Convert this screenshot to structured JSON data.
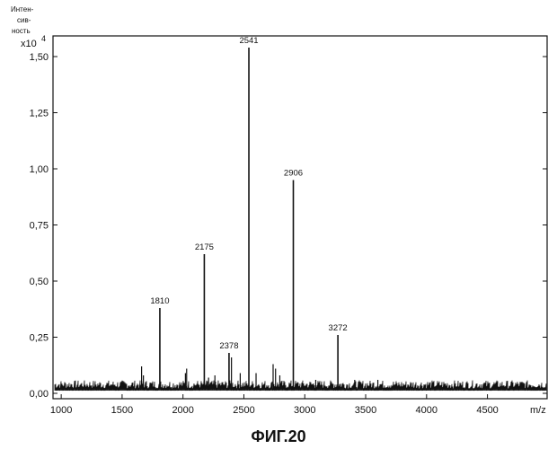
{
  "figure_caption": "ФИГ.20",
  "chart_data": {
    "type": "line",
    "title": "",
    "ylabel_lines": [
      "Интен-",
      "сив-",
      "ность"
    ],
    "y_multiplier_base": "x10",
    "y_multiplier_exp": "4",
    "xlabel": "m/z",
    "xlim": [
      940,
      4990
    ],
    "ylim": [
      0,
      1.6
    ],
    "x_ticks": [
      1000,
      1500,
      2000,
      2500,
      3000,
      3500,
      4000,
      4500
    ],
    "x_tick_labels": [
      "1000",
      "1500",
      "2000",
      "2500",
      "3000",
      "3500",
      "4000",
      "4500"
    ],
    "y_ticks": [
      0,
      0.25,
      0.5,
      0.75,
      1.0,
      1.25,
      1.5
    ],
    "y_tick_labels": [
      "0,00",
      "0,25",
      "0,50",
      "0,75",
      "1,00",
      "1,25",
      "1,50"
    ],
    "grid": false,
    "baseline_level": 0.04,
    "labeled_peaks": [
      {
        "x": 1810,
        "y": 0.38,
        "label": "1810"
      },
      {
        "x": 2175,
        "y": 0.62,
        "label": "2175"
      },
      {
        "x": 2378,
        "y": 0.18,
        "label": "2378"
      },
      {
        "x": 2541,
        "y": 1.54,
        "label": "2541"
      },
      {
        "x": 2906,
        "y": 0.95,
        "label": "2906"
      },
      {
        "x": 3272,
        "y": 0.26,
        "label": "3272"
      }
    ],
    "minor_peaks": [
      {
        "x": 1660,
        "y": 0.12
      },
      {
        "x": 1675,
        "y": 0.08
      },
      {
        "x": 2020,
        "y": 0.09
      },
      {
        "x": 2030,
        "y": 0.11
      },
      {
        "x": 2210,
        "y": 0.07
      },
      {
        "x": 2262,
        "y": 0.08
      },
      {
        "x": 2398,
        "y": 0.16
      },
      {
        "x": 2470,
        "y": 0.09
      },
      {
        "x": 2600,
        "y": 0.09
      },
      {
        "x": 2740,
        "y": 0.13
      },
      {
        "x": 2760,
        "y": 0.11
      },
      {
        "x": 2795,
        "y": 0.08
      },
      {
        "x": 3090,
        "y": 0.06
      },
      {
        "x": 3410,
        "y": 0.06
      },
      {
        "x": 3600,
        "y": 0.06
      }
    ]
  }
}
